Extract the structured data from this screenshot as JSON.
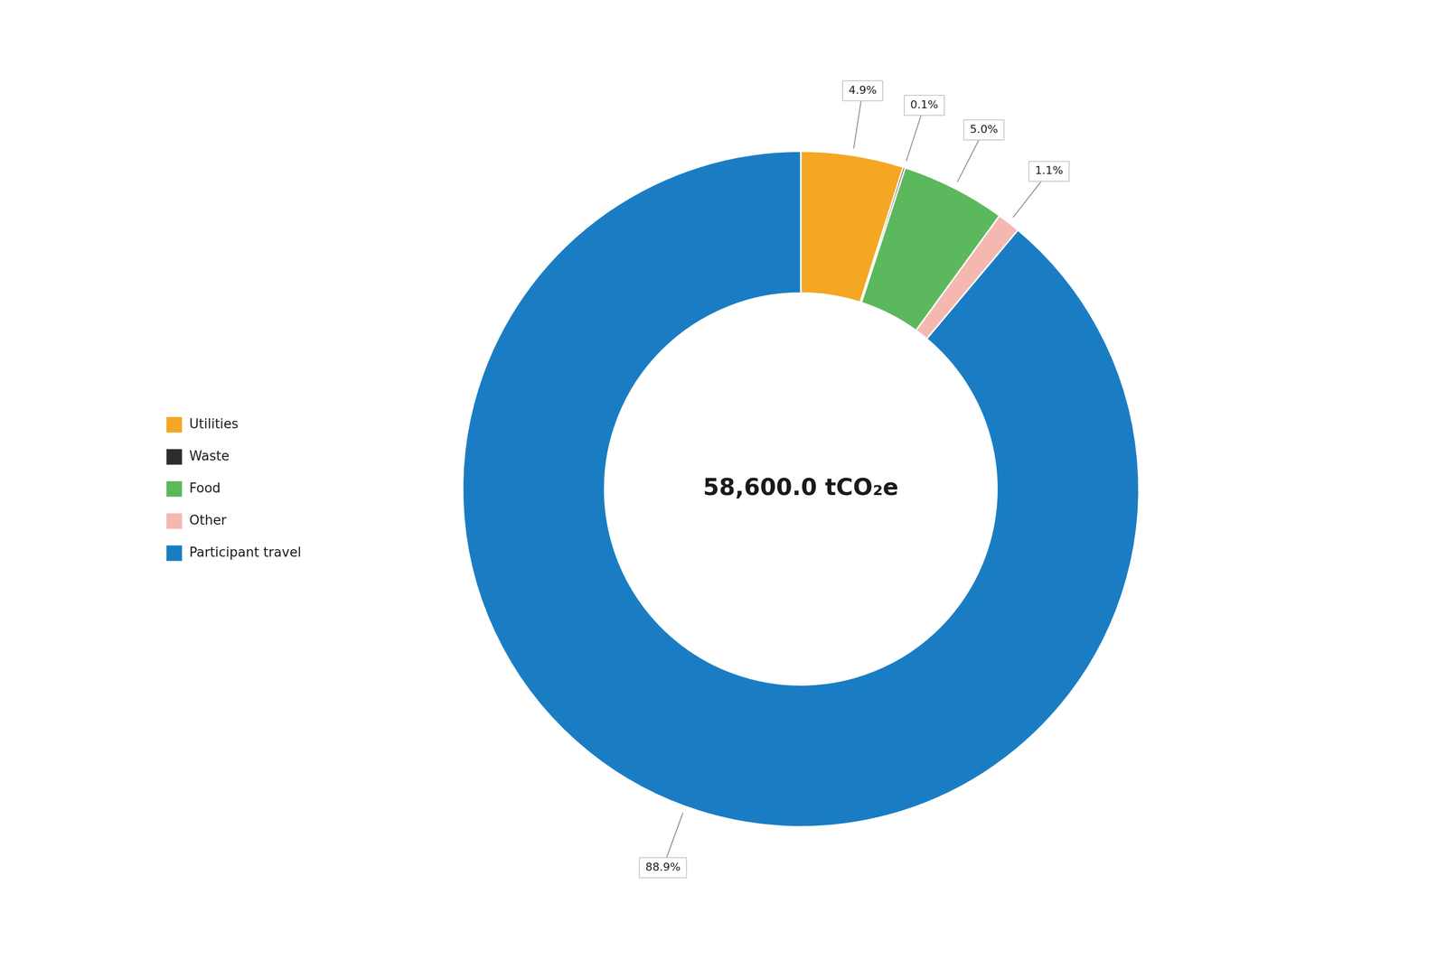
{
  "chart_data": {
    "type": "doughnut",
    "categories": [
      "Utilities",
      "Waste",
      "Food",
      "Other",
      "Participant travel"
    ],
    "values": [
      4.9,
      0.1,
      5.0,
      1.1,
      88.9
    ],
    "value_labels": [
      "4.9%",
      "0.1%",
      "5.0%",
      "1.1%",
      "88.9%"
    ],
    "colors": [
      "#f5a623",
      "#2c2c2c",
      "#5cb85c",
      "#f4b8b0",
      "#1a7dc4"
    ],
    "data_labels": true,
    "legend": "left",
    "annotations": [
      "58,600.0 tCO₂e"
    ]
  }
}
